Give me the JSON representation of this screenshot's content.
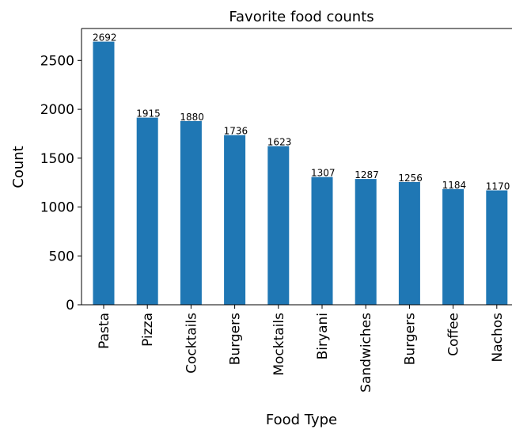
{
  "chart_data": {
    "type": "bar",
    "title": "Favorite food counts",
    "xlabel": "Food Type",
    "ylabel": "Count",
    "categories": [
      "Pasta",
      "Pizza",
      "Cocktails",
      "Burgers",
      "Mocktails",
      "Biryani",
      "Sandwiches",
      "Burgers",
      "Coffee",
      "Nachos"
    ],
    "values": [
      2692,
      1915,
      1880,
      1736,
      1623,
      1307,
      1287,
      1256,
      1184,
      1170
    ],
    "data_labels": [
      "2692",
      "1915",
      "1880",
      "1736",
      "1623",
      "1307",
      "1287",
      "1256",
      "1184",
      "1170"
    ],
    "yticks": [
      0,
      500,
      1000,
      1500,
      2000,
      2500
    ],
    "ytick_labels": [
      "0",
      "500",
      "1000",
      "1500",
      "2000",
      "2500"
    ],
    "ylim": [
      0,
      2826.6
    ],
    "grid": false,
    "legend": "none",
    "bar_color": "#1f77b4"
  }
}
